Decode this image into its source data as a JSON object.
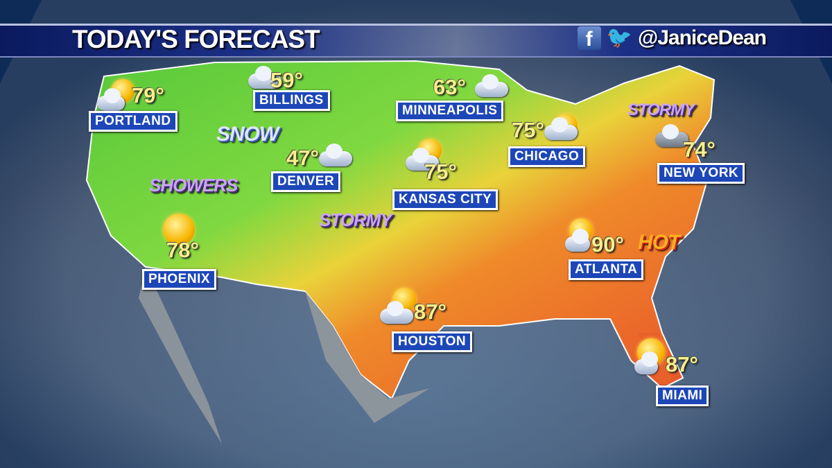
{
  "header": {
    "title": "TODAY'S FORECAST",
    "social_handle": "@JaniceDean",
    "icons": [
      "facebook-icon",
      "twitter-icon"
    ]
  },
  "cities": [
    {
      "name": "PORTLAND",
      "temp": "79°",
      "icon": "sun-cloud"
    },
    {
      "name": "BILLINGS",
      "temp": "59°",
      "icon": "cloudy"
    },
    {
      "name": "MINNEAPOLIS",
      "temp": "63°",
      "icon": "cloudy"
    },
    {
      "name": "CHICAGO",
      "temp": "75°",
      "icon": "sun-cloud"
    },
    {
      "name": "NEW YORK",
      "temp": "74°",
      "icon": "cloudy"
    },
    {
      "name": "DENVER",
      "temp": "47°",
      "icon": "cloudy"
    },
    {
      "name": "KANSAS CITY",
      "temp": "75°",
      "icon": "sun-cloud"
    },
    {
      "name": "PHOENIX",
      "temp": "78°",
      "icon": "sunny"
    },
    {
      "name": "ATLANTA",
      "temp": "90°",
      "icon": "sun-cloud"
    },
    {
      "name": "HOUSTON",
      "temp": "87°",
      "icon": "sun-cloud"
    },
    {
      "name": "MIAMI",
      "temp": "87°",
      "icon": "sun-cloud"
    }
  ],
  "conditions": {
    "snow": "SNOW",
    "showers": "SHOWERS",
    "stormy_plains": "STORMY",
    "stormy_northeast": "STORMY",
    "hot": "HOT"
  },
  "colors": {
    "banner": "#1b2f86",
    "city_label": "#1d47b8",
    "temp": "#f8ef8c",
    "stormy": "#c9a6f2",
    "hot": "#ffb020"
  }
}
